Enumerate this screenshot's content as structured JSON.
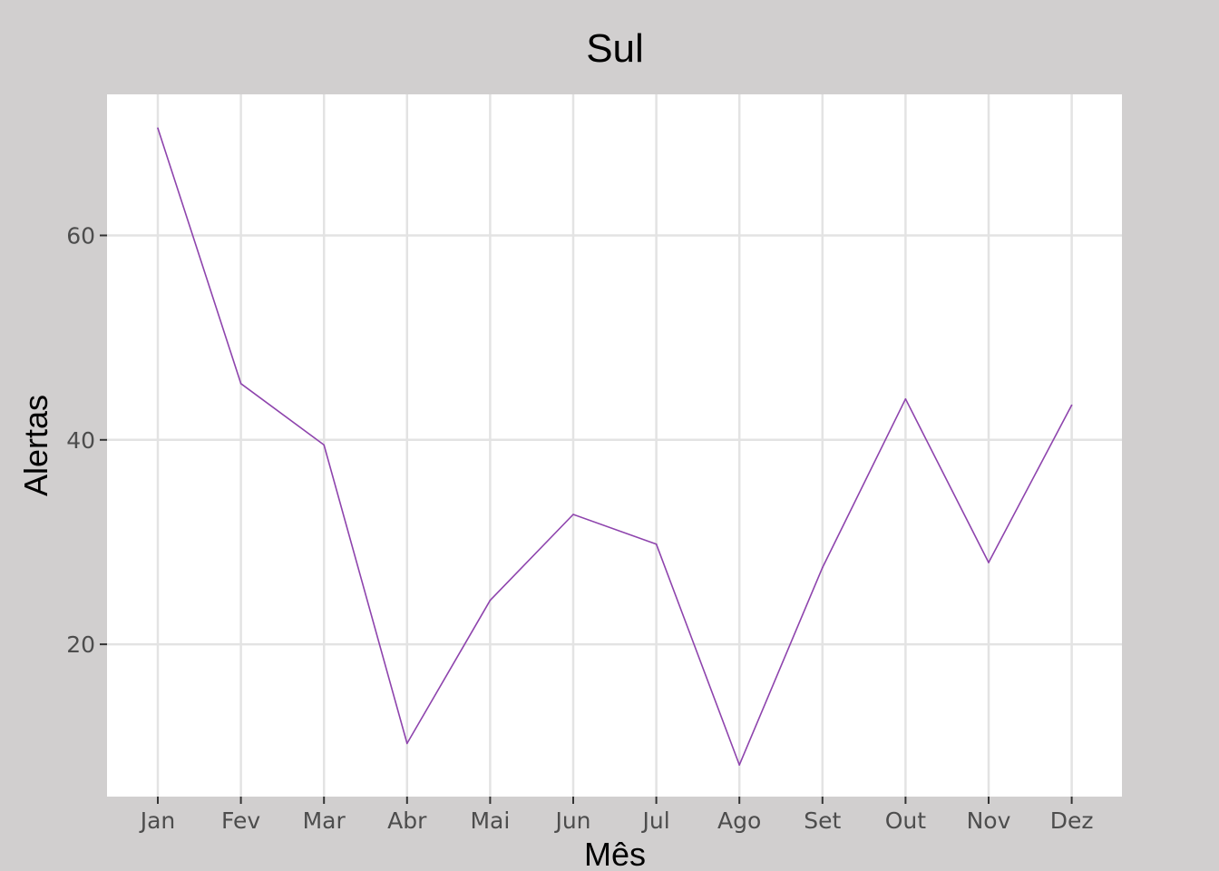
{
  "chart_data": {
    "type": "line",
    "title": "Sul",
    "xlabel": "Mês",
    "ylabel": "Alertas",
    "categories": [
      "Jan",
      "Fev",
      "Mar",
      "Abr",
      "Mai",
      "Jun",
      "Jul",
      "Ago",
      "Set",
      "Out",
      "Nov",
      "Dez"
    ],
    "series": [
      {
        "values": [
          70.5,
          45.5,
          39.5,
          10.3,
          24.3,
          32.7,
          29.8,
          8.2,
          27.5,
          44.0,
          28.0,
          43.4
        ]
      }
    ],
    "yticks": [
      20,
      40,
      60
    ],
    "ylim": [
      5.1,
      73.8
    ],
    "grid": true,
    "colors": {
      "line": "#8e44ad",
      "panel": "#ffffff",
      "background": "#d1cfcf",
      "grid": "#e3e3e3"
    }
  }
}
